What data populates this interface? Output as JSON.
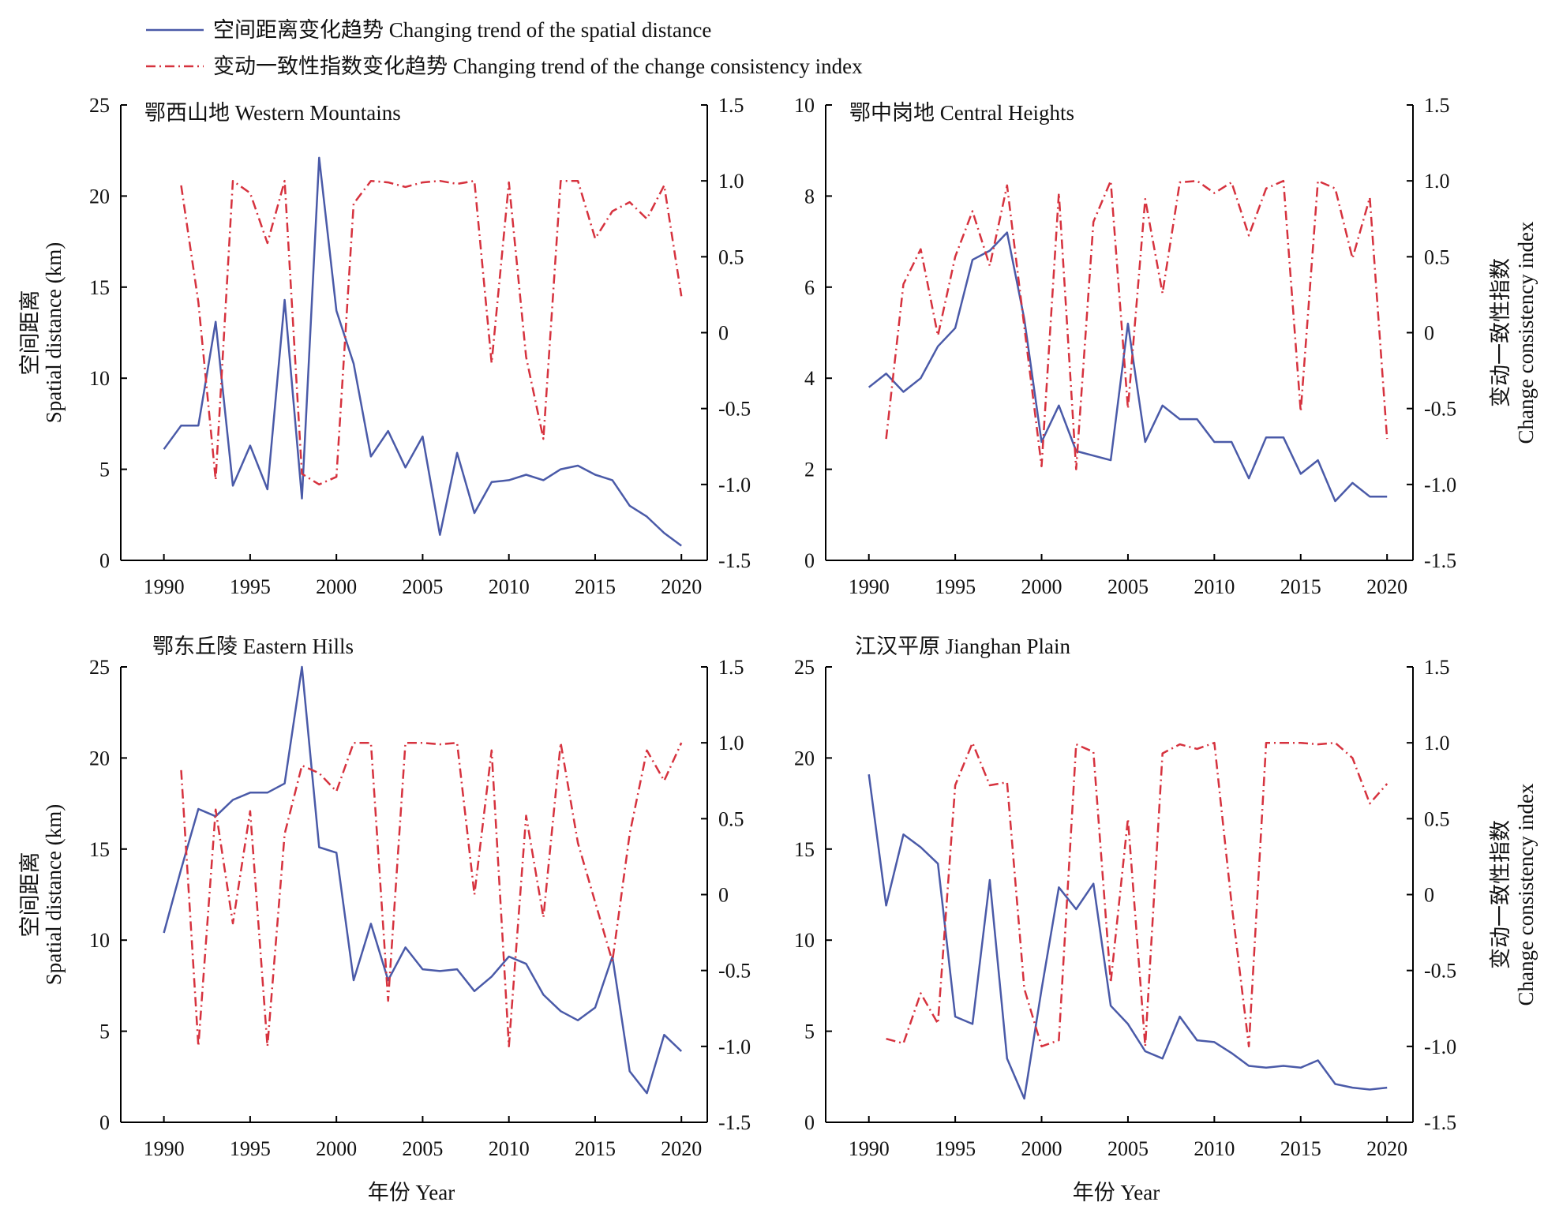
{
  "legend": {
    "distance_label": "空间距离变化趋势 Changing trend of the spatial distance",
    "consistency_label": "变动一致性指数变化趋势 Changing trend of the change consistency index"
  },
  "colors": {
    "distance": "#4a5aa8",
    "consistency": "#d6323e"
  },
  "x_axis": {
    "title": "年份 Year",
    "ticks": [
      "1990",
      "1995",
      "2000",
      "2005",
      "2010",
      "2015",
      "2020"
    ]
  },
  "y_axis_left": {
    "title_cn": "空间距离",
    "title_en": "Spatial distance (km)"
  },
  "y_axis_right": {
    "title_cn": "变动一致性指数",
    "title_en": "Change consistency index"
  },
  "chart_data": [
    {
      "type": "line",
      "title": "鄂西山地 Western Mountains",
      "xlim": [
        1987.5,
        2021.5
      ],
      "ylim_left": [
        0,
        25
      ],
      "yticks_left": [
        "0",
        "5",
        "10",
        "15",
        "20",
        "25"
      ],
      "ylim_right": [
        -1.5,
        1.5
      ],
      "yticks_right": [
        "-1.5",
        "-1.0",
        "-0.5",
        "0",
        "0.5",
        "1.0",
        "1.5"
      ],
      "series": [
        {
          "name": "空间距离变化趋势 Changing trend of the spatial distance",
          "axis": "left",
          "x": [
            1990,
            1991,
            1992,
            1993,
            1994,
            1995,
            1996,
            1997,
            1998,
            1999,
            2000,
            2001,
            2002,
            2003,
            2004,
            2005,
            2006,
            2007,
            2008,
            2009,
            2010,
            2011,
            2012,
            2013,
            2014,
            2015,
            2016,
            2017,
            2018,
            2019,
            2020
          ],
          "values": [
            6.1,
            7.4,
            7.4,
            13.1,
            4.1,
            6.3,
            3.9,
            14.3,
            3.4,
            22.1,
            13.7,
            10.8,
            5.7,
            7.1,
            5.1,
            6.8,
            1.4,
            5.9,
            2.6,
            4.3,
            4.4,
            4.7,
            4.4,
            5.0,
            5.2,
            4.7,
            4.4,
            3.0,
            2.4,
            1.5,
            0.8
          ]
        },
        {
          "name": "变动一致性指数变化趋势 Changing trend of the change consistency index",
          "axis": "right",
          "x": [
            1991,
            1992,
            1993,
            1994,
            1995,
            1996,
            1997,
            1998,
            1999,
            2000,
            2001,
            2002,
            2003,
            2004,
            2005,
            2006,
            2007,
            2008,
            2009,
            2010,
            2011,
            2012,
            2013,
            2014,
            2015,
            2016,
            2017,
            2018,
            2019,
            2020
          ],
          "values": [
            0.97,
            0.2,
            -0.97,
            1.0,
            0.92,
            0.59,
            1.0,
            -0.93,
            -1.0,
            -0.95,
            0.85,
            1.0,
            0.99,
            0.96,
            0.99,
            1.0,
            0.98,
            1.0,
            -0.2,
            0.99,
            -0.16,
            -0.7,
            1.0,
            1.0,
            0.62,
            0.8,
            0.86,
            0.75,
            0.97,
            0.24
          ]
        }
      ]
    },
    {
      "type": "line",
      "title": "鄂中岗地 Central Heights",
      "xlim": [
        1987.5,
        2021.5
      ],
      "ylim_left": [
        0,
        10
      ],
      "yticks_left": [
        "0",
        "2",
        "4",
        "6",
        "8",
        "10"
      ],
      "ylim_right": [
        -1.5,
        1.5
      ],
      "yticks_right": [
        "-1.5",
        "-1.0",
        "-0.5",
        "0",
        "0.5",
        "1.0",
        "1.5"
      ],
      "series": [
        {
          "name": "空间距离变化趋势 Changing trend of the spatial distance",
          "axis": "left",
          "x": [
            1990,
            1991,
            1992,
            1993,
            1994,
            1995,
            1996,
            1997,
            1998,
            1999,
            2000,
            2001,
            2002,
            2003,
            2004,
            2005,
            2006,
            2007,
            2008,
            2009,
            2010,
            2011,
            2012,
            2013,
            2014,
            2015,
            2016,
            2017,
            2018,
            2019,
            2020
          ],
          "values": [
            3.8,
            4.1,
            3.7,
            4.0,
            4.7,
            5.1,
            6.6,
            6.8,
            7.2,
            5.3,
            2.6,
            3.4,
            2.4,
            2.3,
            2.2,
            5.2,
            2.6,
            3.4,
            3.1,
            3.1,
            2.6,
            2.6,
            1.8,
            2.7,
            2.7,
            1.9,
            2.2,
            1.3,
            1.7,
            1.4,
            1.4
          ]
        },
        {
          "name": "变动一致性指数变化趋势 Changing trend of the change consistency index",
          "axis": "right",
          "x": [
            1991,
            1992,
            1993,
            1994,
            1995,
            1996,
            1997,
            1998,
            1999,
            2000,
            2001,
            2002,
            2003,
            2004,
            2005,
            2006,
            2007,
            2008,
            2009,
            2010,
            2011,
            2012,
            2013,
            2014,
            2015,
            2016,
            2017,
            2018,
            2019,
            2020
          ],
          "values": [
            -0.7,
            0.32,
            0.55,
            -0.02,
            0.5,
            0.8,
            0.44,
            0.97,
            0.04,
            -0.88,
            0.92,
            -0.9,
            0.73,
            1.0,
            -0.5,
            0.88,
            0.26,
            0.99,
            1.0,
            0.92,
            0.99,
            0.64,
            0.95,
            1.0,
            -0.52,
            1.0,
            0.95,
            0.49,
            0.89,
            -0.7
          ]
        }
      ]
    },
    {
      "type": "line",
      "title": "鄂东丘陵 Eastern Hills",
      "xlim": [
        1987.5,
        2021.5
      ],
      "ylim_left": [
        0,
        25
      ],
      "yticks_left": [
        "0",
        "5",
        "10",
        "15",
        "20",
        "25"
      ],
      "ylim_right": [
        -1.5,
        1.5
      ],
      "yticks_right": [
        "-1.5",
        "-1.0",
        "-0.5",
        "0",
        "0.5",
        "1.0",
        "1.5"
      ],
      "series": [
        {
          "name": "空间距离变化趋势 Changing trend of the spatial distance",
          "axis": "left",
          "x": [
            1990,
            1991,
            1992,
            1993,
            1994,
            1995,
            1996,
            1997,
            1998,
            1999,
            2000,
            2001,
            2002,
            2003,
            2004,
            2005,
            2006,
            2007,
            2008,
            2009,
            2010,
            2011,
            2012,
            2013,
            2014,
            2015,
            2016,
            2017,
            2018,
            2019,
            2020
          ],
          "values": [
            10.4,
            13.9,
            17.2,
            16.8,
            17.7,
            18.1,
            18.1,
            18.6,
            25.0,
            15.1,
            14.8,
            7.8,
            10.9,
            7.8,
            9.6,
            8.4,
            8.3,
            8.4,
            7.2,
            8.0,
            9.1,
            8.7,
            7.0,
            6.1,
            5.6,
            6.3,
            9.1,
            2.8,
            1.6,
            4.8,
            3.9
          ]
        },
        {
          "name": "变动一致性指数变化趋势 Changing trend of the change consistency index",
          "axis": "right",
          "x": [
            1991,
            1992,
            1993,
            1994,
            1995,
            1996,
            1997,
            1998,
            1999,
            2000,
            2001,
            2002,
            2003,
            2004,
            2005,
            2006,
            2007,
            2008,
            2009,
            2010,
            2011,
            2012,
            2013,
            2014,
            2015,
            2016,
            2017,
            2018,
            2019,
            2020
          ],
          "values": [
            0.82,
            -1.0,
            0.56,
            -0.19,
            0.55,
            -1.0,
            0.4,
            0.85,
            0.8,
            0.68,
            1.0,
            1.0,
            -0.7,
            1.0,
            1.0,
            0.99,
            1.0,
            0.0,
            0.95,
            -1.0,
            0.52,
            -0.15,
            1.0,
            0.34,
            -0.05,
            -0.44,
            0.4,
            0.95,
            0.75,
            1.0
          ]
        }
      ]
    },
    {
      "type": "line",
      "title": "江汉平原 Jianghan Plain",
      "xlim": [
        1987.5,
        2021.5
      ],
      "ylim_left": [
        0,
        25
      ],
      "yticks_left": [
        "0",
        "5",
        "10",
        "15",
        "20",
        "25"
      ],
      "ylim_right": [
        -1.5,
        1.5
      ],
      "yticks_right": [
        "-1.5",
        "-1.0",
        "-0.5",
        "0",
        "0.5",
        "1.0",
        "1.5"
      ],
      "series": [
        {
          "name": "空间距离变化趋势 Changing trend of the spatial distance",
          "axis": "left",
          "x": [
            1990,
            1991,
            1992,
            1993,
            1994,
            1995,
            1996,
            1997,
            1998,
            1999,
            2000,
            2001,
            2002,
            2003,
            2004,
            2005,
            2006,
            2007,
            2008,
            2009,
            2010,
            2011,
            2012,
            2013,
            2014,
            2015,
            2016,
            2017,
            2018,
            2019,
            2020
          ],
          "values": [
            19.1,
            11.9,
            15.8,
            15.1,
            14.2,
            5.8,
            5.4,
            13.3,
            3.5,
            1.3,
            7.3,
            12.9,
            11.7,
            13.1,
            6.4,
            5.4,
            3.9,
            3.5,
            5.8,
            4.5,
            4.4,
            3.8,
            3.1,
            3.0,
            3.1,
            3.0,
            3.4,
            2.1,
            1.9,
            1.8,
            1.9
          ]
        },
        {
          "name": "变动一致性指数变化趋势 Changing trend of the change consistency index",
          "axis": "right",
          "x": [
            1991,
            1992,
            1993,
            1994,
            1995,
            1996,
            1997,
            1998,
            1999,
            2000,
            2001,
            2002,
            2003,
            2004,
            2005,
            2006,
            2007,
            2008,
            2009,
            2010,
            2011,
            2012,
            2013,
            2014,
            2015,
            2016,
            2017,
            2018,
            2019,
            2020
          ],
          "values": [
            -0.95,
            -0.98,
            -0.65,
            -0.85,
            0.72,
            1.0,
            0.72,
            0.74,
            -0.62,
            -1.0,
            -0.96,
            0.99,
            0.94,
            -0.58,
            0.5,
            -1.0,
            0.93,
            0.99,
            0.96,
            1.0,
            -0.06,
            -1.0,
            1.0,
            1.0,
            1.0,
            0.99,
            1.0,
            0.9,
            0.6,
            0.73
          ]
        }
      ]
    }
  ]
}
